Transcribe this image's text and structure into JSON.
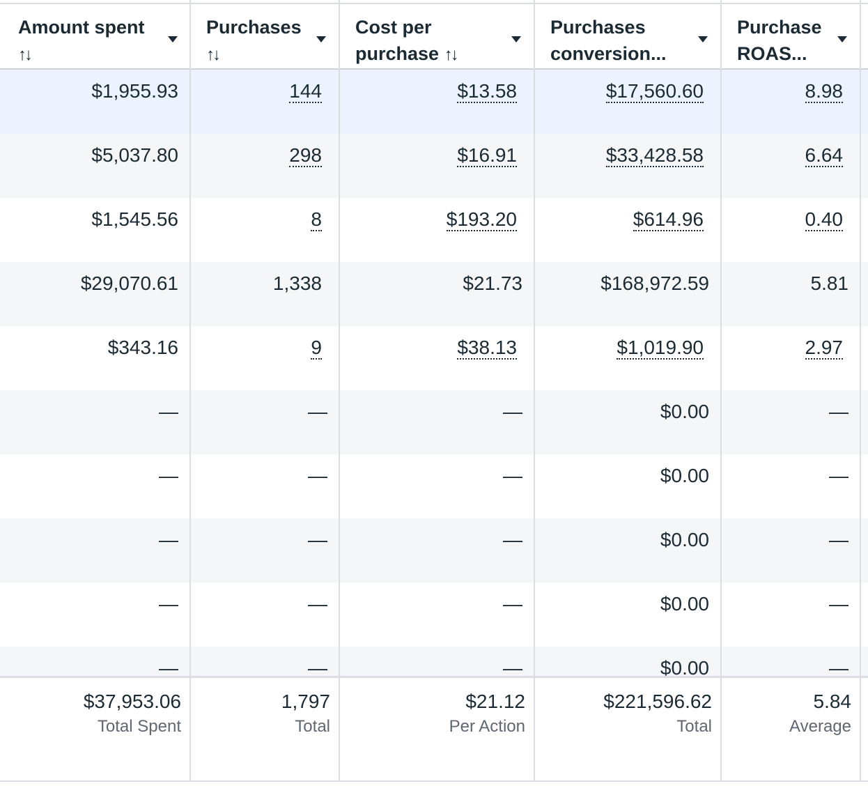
{
  "columns": [
    {
      "label": "Amount spent",
      "sort_icon": "↑↓"
    },
    {
      "label": "Purchases",
      "sort_icon": "↑↓"
    },
    {
      "label": "Cost per\npurchase",
      "sort_icon": "↑↓"
    },
    {
      "label": "Purchases\nconversion...",
      "sort_icon": ""
    },
    {
      "label": "Purchase\nROAS...",
      "sort_icon": ""
    }
  ],
  "rows": [
    {
      "cells": [
        "$1,955.93",
        "144",
        "$13.58",
        "$17,560.60",
        "8.98"
      ]
    },
    {
      "cells": [
        "$5,037.80",
        "298",
        "$16.91",
        "$33,428.58",
        "6.64"
      ]
    },
    {
      "cells": [
        "$1,545.56",
        "8",
        "$193.20",
        "$614.96",
        "0.40"
      ]
    },
    {
      "cells": [
        "$29,070.61",
        "1,338",
        "$21.73",
        "$168,972.59",
        "5.81"
      ]
    },
    {
      "cells": [
        "$343.16",
        "9",
        "$38.13",
        "$1,019.90",
        "2.97"
      ]
    },
    {
      "cells": [
        "—",
        "—",
        "—",
        "$0.00",
        "—"
      ]
    },
    {
      "cells": [
        "—",
        "—",
        "—",
        "$0.00",
        "—"
      ]
    },
    {
      "cells": [
        "—",
        "—",
        "—",
        "$0.00",
        "—"
      ]
    },
    {
      "cells": [
        "—",
        "—",
        "—",
        "$0.00",
        "—"
      ]
    },
    {
      "cells": [
        "—",
        "—",
        "—",
        "$0.00",
        "—"
      ]
    }
  ],
  "totals": [
    {
      "value": "$37,953.06",
      "label": "Total Spent"
    },
    {
      "value": "1,797",
      "label": "Total"
    },
    {
      "value": "$21.12",
      "label": "Per Action"
    },
    {
      "value": "$221,596.62",
      "label": "Total"
    },
    {
      "value": "5.84",
      "label": "Average"
    }
  ]
}
